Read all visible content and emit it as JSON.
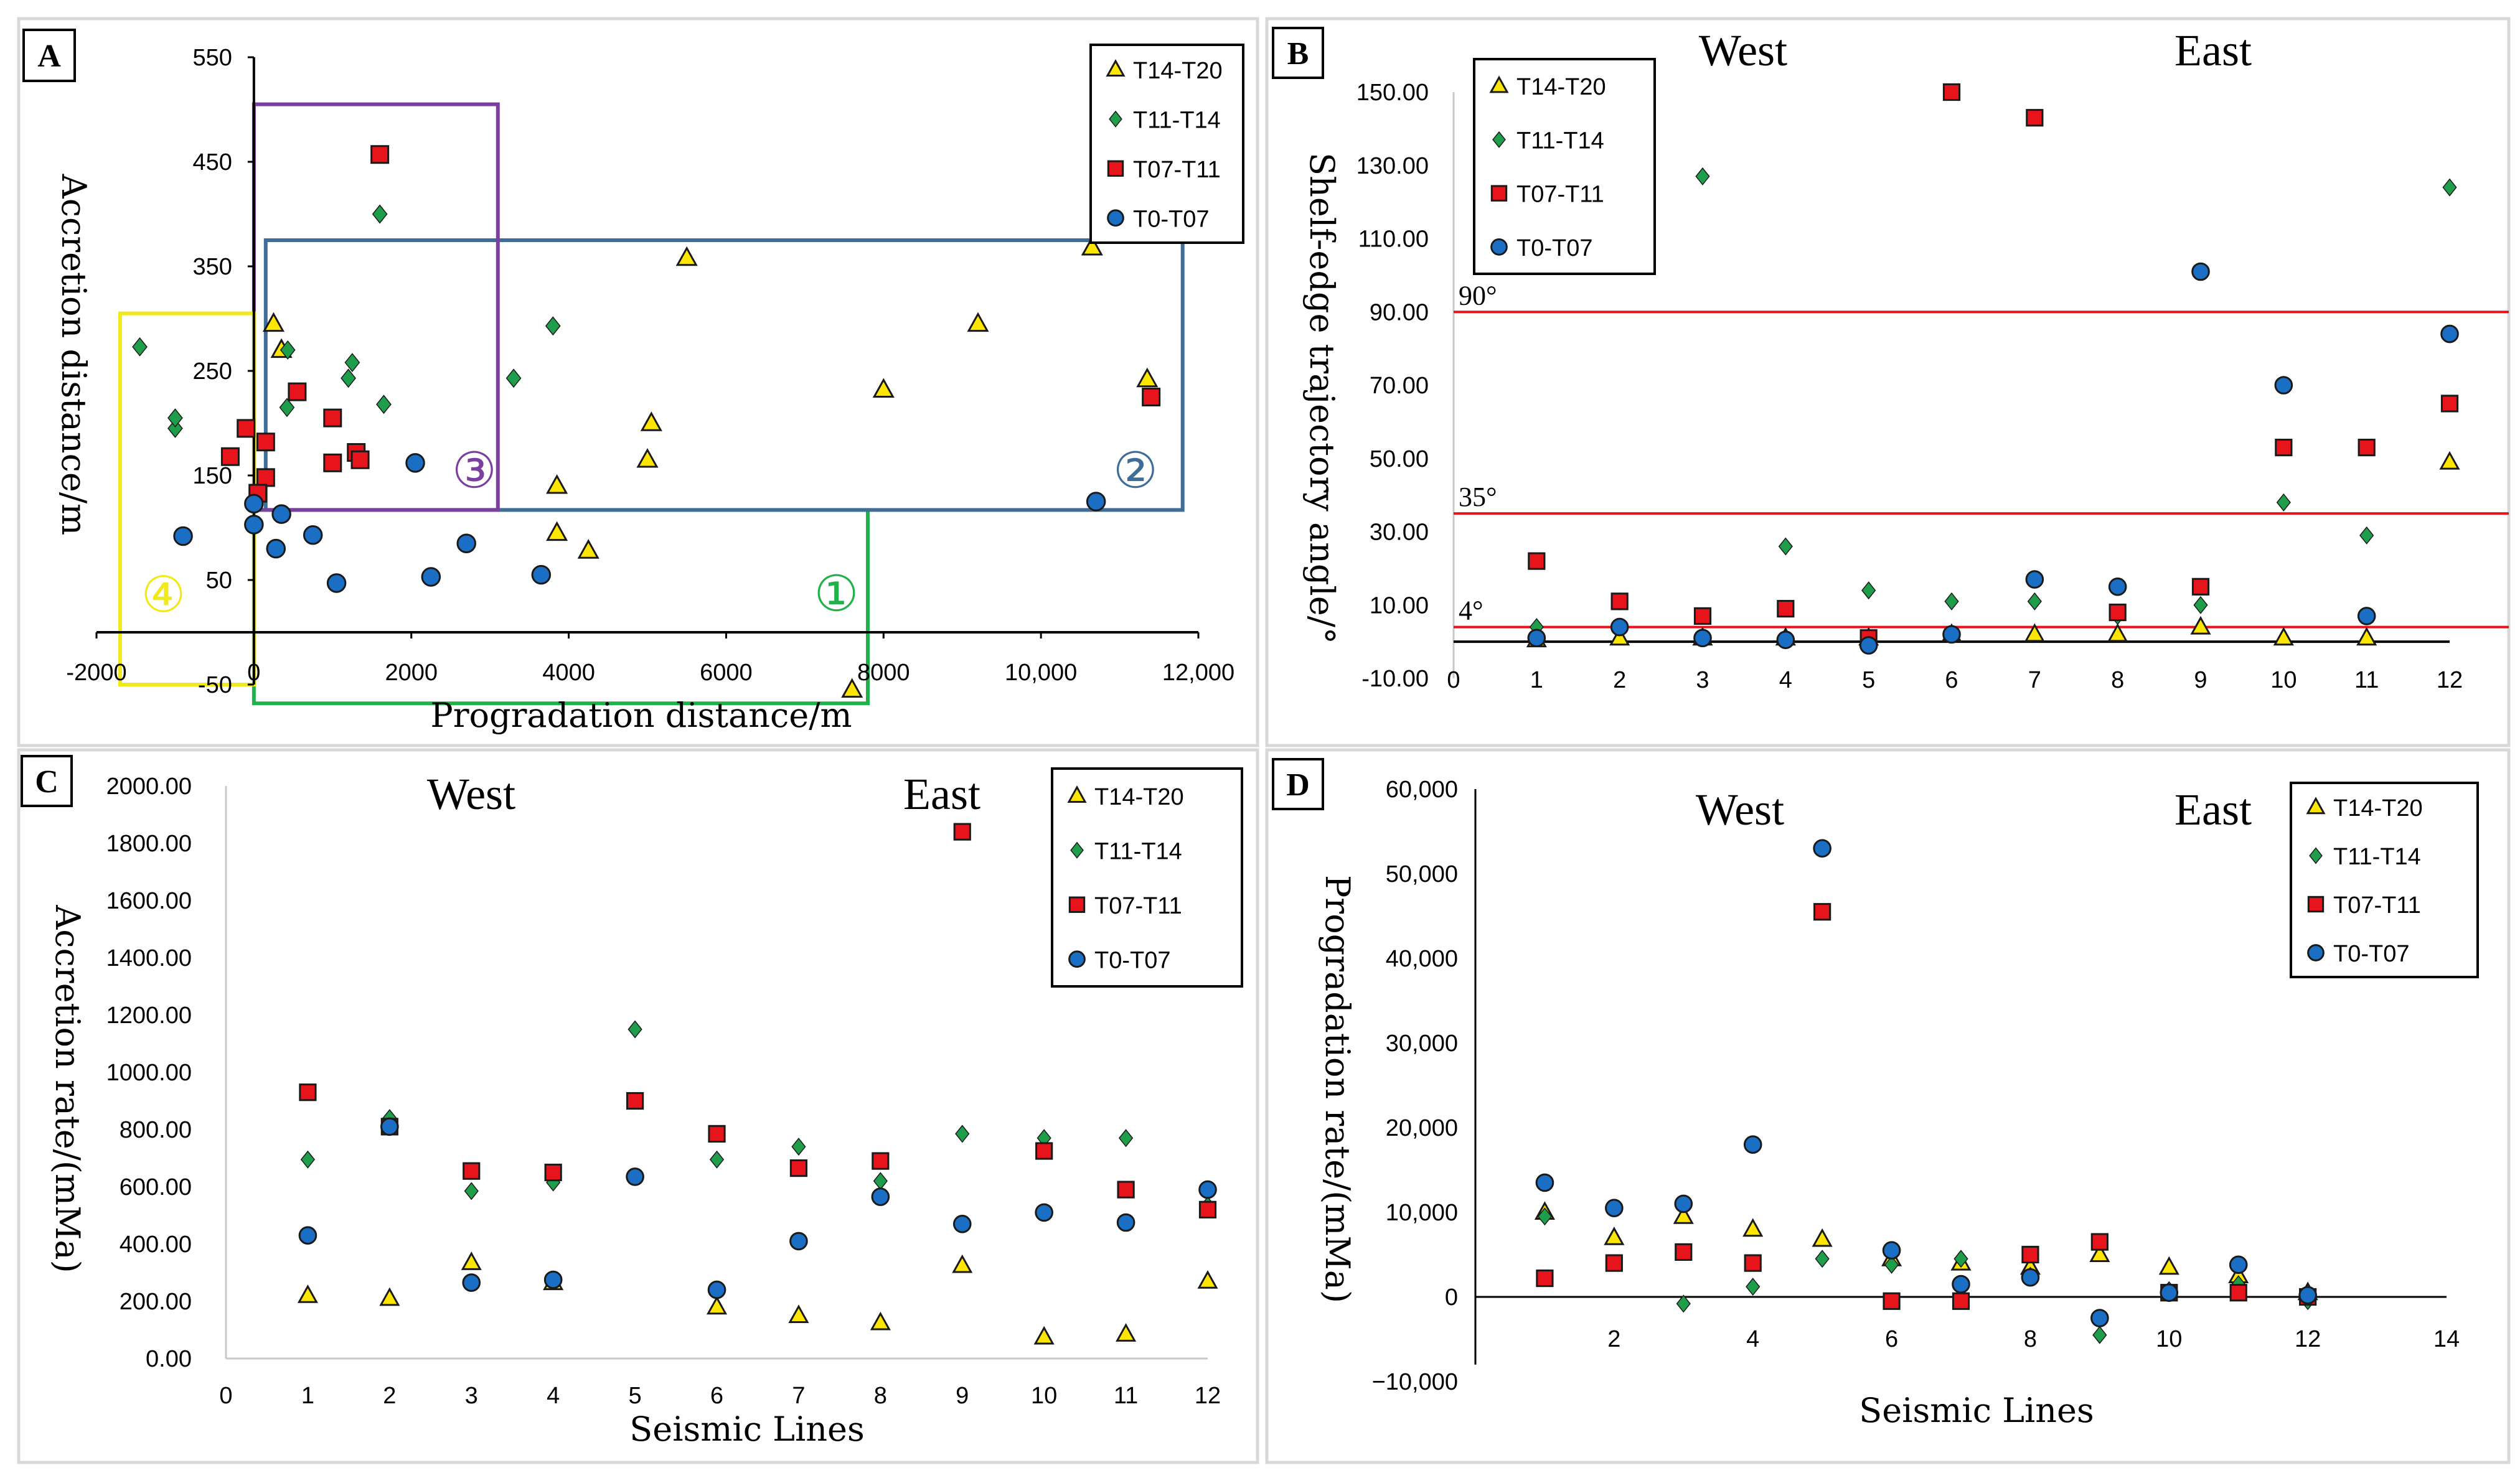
{
  "styles": {
    "T14-T20": {
      "fill": "#ffe600",
      "shape": "triangle"
    },
    "T11-T14": {
      "fill": "#1e9e4a",
      "shape": "diamond"
    },
    "T07-T11": {
      "fill": "#e8141c",
      "shape": "square"
    },
    "T0-T07": {
      "fill": "#1a6fc4",
      "shape": "circle"
    }
  },
  "colors": {
    "ref_line": "#e8141c",
    "zone1": "#22b04a",
    "zone2": "#3f6d98",
    "zone3": "#7a3fa0",
    "zone4": "#f0ea1a"
  },
  "chart_data": [
    {
      "panel": "A",
      "type": "scatter",
      "xlabel": "Progradation distance/m",
      "ylabel": "Accretion distance/m",
      "xlim": [
        -2000,
        12000
      ],
      "ylim": [
        -50,
        550
      ],
      "xticks": [
        -2000,
        0,
        2000,
        4000,
        6000,
        8000,
        10000,
        12000
      ],
      "xtick_labels": [
        "-2000",
        "0",
        "2000",
        "4000",
        "6000",
        "8000",
        "10,000",
        "12,000"
      ],
      "yticks": [
        -50,
        50,
        150,
        250,
        350,
        450,
        550
      ],
      "legend_position": "top-right",
      "zones": [
        {
          "label": "①",
          "x0": 0,
          "x1": 7800,
          "y0": -68,
          "y1": 117,
          "color": "zone1",
          "label_x": 7400,
          "label_y": 36
        },
        {
          "label": "②",
          "x0": 150,
          "x1": 11800,
          "y0": 117,
          "y1": 375,
          "color": "zone2",
          "label_x": 11200,
          "label_y": 154
        },
        {
          "label": "③",
          "x0": 0,
          "x1": 3100,
          "y0": 117,
          "y1": 505,
          "color": "zone3",
          "label_x": 2800,
          "label_y": 154
        },
        {
          "label": "④",
          "x0": -1700,
          "x1": 0,
          "y0": -50,
          "y1": 305,
          "color": "zone4",
          "label_x": -1150,
          "label_y": 35
        }
      ],
      "series": [
        {
          "name": "T14-T20",
          "points": [
            [
              250,
              295
            ],
            [
              350,
              270
            ],
            [
              3850,
              140
            ],
            [
              3850,
              95
            ],
            [
              4250,
              78
            ],
            [
              5050,
              200
            ],
            [
              5000,
              165
            ],
            [
              5500,
              358
            ],
            [
              7600,
              -55
            ],
            [
              8000,
              232
            ],
            [
              9200,
              295
            ],
            [
              10650,
              368
            ],
            [
              11350,
              242
            ]
          ]
        },
        {
          "name": "T11-T14",
          "points": [
            [
              -1450,
              273
            ],
            [
              -1000,
              195
            ],
            [
              -1000,
              205
            ],
            [
              430,
              270
            ],
            [
              420,
              215
            ],
            [
              1200,
              243
            ],
            [
              1250,
              258
            ],
            [
              1600,
              400
            ],
            [
              1650,
              218
            ],
            [
              3300,
              243
            ],
            [
              3800,
              293
            ]
          ]
        },
        {
          "name": "T07-T11",
          "points": [
            [
              -300,
              168
            ],
            [
              -100,
              195
            ],
            [
              150,
              148
            ],
            [
              50,
              133
            ],
            [
              150,
              182
            ],
            [
              550,
              230
            ],
            [
              1000,
              205
            ],
            [
              1000,
              162
            ],
            [
              1300,
              172
            ],
            [
              1350,
              165
            ],
            [
              1600,
              457
            ],
            [
              11400,
              225
            ]
          ]
        },
        {
          "name": "T0-T07",
          "points": [
            [
              -900,
              92
            ],
            [
              0,
              123
            ],
            [
              0,
              103
            ],
            [
              280,
              80
            ],
            [
              350,
              113
            ],
            [
              750,
              93
            ],
            [
              1050,
              47
            ],
            [
              2050,
              162
            ],
            [
              2250,
              53
            ],
            [
              2700,
              85
            ],
            [
              3650,
              55
            ],
            [
              10700,
              125
            ]
          ]
        }
      ]
    },
    {
      "panel": "B",
      "type": "scatter",
      "ylabel": "Shelf-edge trajectory angle/°",
      "xlim": [
        0,
        12
      ],
      "ylim": [
        -10,
        150
      ],
      "xticks": [
        0,
        1,
        2,
        3,
        4,
        5,
        6,
        7,
        8,
        9,
        10,
        11,
        12
      ],
      "yticks": [
        -10,
        10,
        30,
        50,
        70,
        90,
        110,
        130,
        150
      ],
      "ytick_labels": [
        "-10.00",
        "10.00",
        "30.00",
        "50.00",
        "70.00",
        "90.00",
        "110.00",
        "130.00",
        "150.00"
      ],
      "west_label": "West",
      "east_label": "East",
      "legend_position": "top-left",
      "reference_lines": [
        {
          "y": 90,
          "label": "90°"
        },
        {
          "y": 35,
          "label": "35°"
        },
        {
          "y": 4,
          "label": "4°"
        }
      ],
      "series": [
        {
          "name": "T14-T20",
          "points": [
            [
              1,
              0.5
            ],
            [
              2,
              1
            ],
            [
              3,
              1
            ],
            [
              4,
              1
            ],
            [
              5,
              1
            ],
            [
              6,
              2
            ],
            [
              7,
              2
            ],
            [
              8,
              2
            ],
            [
              9,
              4
            ],
            [
              10,
              1
            ],
            [
              11,
              1
            ],
            [
              12,
              49
            ]
          ]
        },
        {
          "name": "T11-T14",
          "points": [
            [
              1,
              4
            ],
            [
              2,
              11
            ],
            [
              3,
              127
            ],
            [
              4,
              26
            ],
            [
              5,
              14
            ],
            [
              6,
              11
            ],
            [
              7,
              11
            ],
            [
              8,
              7
            ],
            [
              9,
              10
            ],
            [
              10,
              38
            ],
            [
              11,
              29
            ],
            [
              12,
              124
            ]
          ]
        },
        {
          "name": "T07-T11",
          "points": [
            [
              1,
              22
            ],
            [
              2,
              11
            ],
            [
              3,
              7
            ],
            [
              4,
              9
            ],
            [
              5,
              1
            ],
            [
              6,
              150
            ],
            [
              7,
              143
            ],
            [
              8,
              8
            ],
            [
              9,
              15
            ],
            [
              10,
              53
            ],
            [
              11,
              53
            ],
            [
              12,
              65
            ]
          ]
        },
        {
          "name": "T0-T07",
          "points": [
            [
              1,
              1
            ],
            [
              2,
              4
            ],
            [
              3,
              1
            ],
            [
              4,
              0.5
            ],
            [
              5,
              -1
            ],
            [
              6,
              2
            ],
            [
              7,
              17
            ],
            [
              8,
              15
            ],
            [
              9,
              101
            ],
            [
              10,
              70
            ],
            [
              11,
              7
            ],
            [
              12,
              84
            ]
          ]
        }
      ]
    },
    {
      "panel": "C",
      "type": "scatter",
      "xlabel": "Seismic Lines",
      "ylabel": "Accretion rate/(mMa)",
      "xlim": [
        0,
        12
      ],
      "ylim": [
        0,
        2000
      ],
      "xticks": [
        0,
        1,
        2,
        3,
        4,
        5,
        6,
        7,
        8,
        9,
        10,
        11,
        12
      ],
      "yticks": [
        0,
        200,
        400,
        600,
        800,
        1000,
        1200,
        1400,
        1600,
        1800,
        2000
      ],
      "ytick_labels": [
        "0.00",
        "200.00",
        "400.00",
        "600.00",
        "800.00",
        "1000.00",
        "1200.00",
        "1400.00",
        "1600.00",
        "1800.00",
        "2000.00"
      ],
      "west_label": "West",
      "east_label": "East",
      "legend_position": "top-right",
      "series": [
        {
          "name": "T14-T20",
          "points": [
            [
              1,
              220
            ],
            [
              2,
              210
            ],
            [
              3,
              335
            ],
            [
              4,
              265
            ],
            [
              6,
              180
            ],
            [
              7,
              150
            ],
            [
              8,
              125
            ],
            [
              9,
              325
            ],
            [
              10,
              75
            ],
            [
              11,
              85
            ],
            [
              12,
              270
            ]
          ]
        },
        {
          "name": "T11-T14",
          "points": [
            [
              1,
              695
            ],
            [
              2,
              840
            ],
            [
              3,
              585
            ],
            [
              4,
              615
            ],
            [
              5,
              1150
            ],
            [
              6,
              695
            ],
            [
              7,
              740
            ],
            [
              8,
              620
            ],
            [
              9,
              785
            ],
            [
              10,
              770
            ],
            [
              11,
              770
            ],
            [
              12,
              535
            ]
          ]
        },
        {
          "name": "T07-T11",
          "points": [
            [
              1,
              930
            ],
            [
              2,
              810
            ],
            [
              3,
              655
            ],
            [
              4,
              650
            ],
            [
              5,
              900
            ],
            [
              6,
              785
            ],
            [
              7,
              665
            ],
            [
              8,
              690
            ],
            [
              9,
              1840
            ],
            [
              10,
              725
            ],
            [
              11,
              590
            ],
            [
              12,
              520
            ]
          ]
        },
        {
          "name": "T0-T07",
          "points": [
            [
              1,
              430
            ],
            [
              2,
              810
            ],
            [
              3,
              265
            ],
            [
              4,
              275
            ],
            [
              5,
              635
            ],
            [
              6,
              240
            ],
            [
              7,
              410
            ],
            [
              8,
              565
            ],
            [
              9,
              470
            ],
            [
              10,
              510
            ],
            [
              11,
              475
            ],
            [
              12,
              590
            ]
          ]
        }
      ]
    },
    {
      "panel": "D",
      "type": "scatter",
      "xlabel": "Seismic Lines",
      "ylabel": "Progradation rate/(mMa)",
      "xlim": [
        0,
        14
      ],
      "ylim": [
        -10000,
        60000
      ],
      "xticks": [
        2,
        4,
        6,
        8,
        10,
        12,
        14
      ],
      "yticks": [
        -10000,
        0,
        10000,
        20000,
        30000,
        40000,
        50000,
        60000
      ],
      "ytick_labels": [
        "−10,000",
        "0",
        "10,000",
        "20,000",
        "30,000",
        "40,000",
        "50,000",
        "60,000"
      ],
      "west_label": "West",
      "east_label": "East",
      "legend_position": "top-right",
      "series": [
        {
          "name": "T14-T20",
          "points": [
            [
              1,
              10000
            ],
            [
              2,
              7000
            ],
            [
              3,
              9500
            ],
            [
              4,
              8000
            ],
            [
              5,
              6800
            ],
            [
              6,
              4500
            ],
            [
              7,
              4000
            ],
            [
              8,
              3500
            ],
            [
              9,
              5000
            ],
            [
              10,
              3500
            ],
            [
              11,
              2500
            ],
            [
              12,
              500
            ]
          ]
        },
        {
          "name": "T11-T14",
          "points": [
            [
              1,
              9500
            ],
            [
              2,
              10500
            ],
            [
              3,
              -800
            ],
            [
              4,
              1200
            ],
            [
              5,
              4500
            ],
            [
              6,
              3800
            ],
            [
              7,
              4500
            ],
            [
              8,
              2500
            ],
            [
              9,
              -4500
            ],
            [
              10,
              800
            ],
            [
              11,
              1500
            ],
            [
              12,
              -500
            ]
          ]
        },
        {
          "name": "T07-T11",
          "points": [
            [
              1,
              2200
            ],
            [
              2,
              4000
            ],
            [
              3,
              5300
            ],
            [
              4,
              4000
            ],
            [
              5,
              45500
            ],
            [
              6,
              -500
            ],
            [
              7,
              -500
            ],
            [
              8,
              5000
            ],
            [
              9,
              6500
            ],
            [
              10,
              500
            ],
            [
              11,
              500
            ],
            [
              12,
              0
            ]
          ]
        },
        {
          "name": "T0-T07",
          "points": [
            [
              1,
              13500
            ],
            [
              2,
              10500
            ],
            [
              3,
              11000
            ],
            [
              4,
              18000
            ],
            [
              5,
              53000
            ],
            [
              6,
              5500
            ],
            [
              7,
              1500
            ],
            [
              8,
              2300
            ],
            [
              9,
              -2500
            ],
            [
              10,
              500
            ],
            [
              11,
              3800
            ],
            [
              12,
              200
            ]
          ]
        }
      ]
    }
  ]
}
